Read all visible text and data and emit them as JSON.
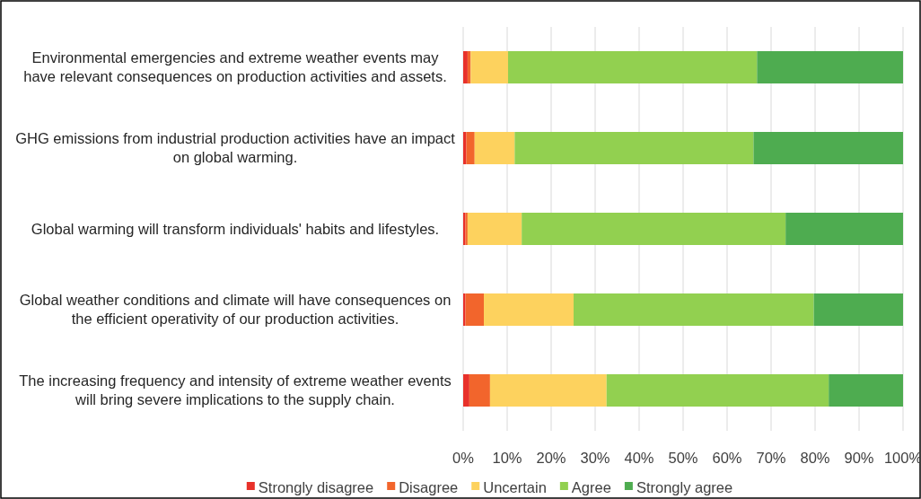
{
  "chart_data": {
    "type": "bar",
    "orientation": "horizontal",
    "stacked": true,
    "categories": [
      "Environmental emergencies and extreme weather events may have relevant consequences on production activities and assets.",
      "GHG emissions from industrial production activities have an impact on global warming.",
      "Global warming will transform individuals' habits and lifestyles.",
      "Global weather conditions and climate will have consequences on the efficient operativity of our production activities.",
      "The increasing frequency and intensity of extreme weather events will bring severe implications to the supply chain."
    ],
    "series": [
      {
        "name": "Strongly disagree",
        "color": "#e8312a",
        "values": [
          1.0,
          0.7,
          0.5,
          0.5,
          1.4
        ]
      },
      {
        "name": "Disagree",
        "color": "#f2652c",
        "values": [
          0.7,
          1.9,
          0.5,
          4.2,
          4.7
        ]
      },
      {
        "name": "Uncertain",
        "color": "#fdd25e",
        "values": [
          8.5,
          9.1,
          12.3,
          20.4,
          26.5
        ]
      },
      {
        "name": "Agree",
        "color": "#92d050",
        "values": [
          56.6,
          54.3,
          60.0,
          54.6,
          50.5
        ]
      },
      {
        "name": "Strongly agree",
        "color": "#4eac50",
        "values": [
          33.2,
          34.0,
          26.7,
          20.3,
          16.9
        ]
      }
    ],
    "xlim": [
      0,
      100
    ],
    "xticks": [
      {
        "value": 0,
        "label": "0%"
      },
      {
        "value": 10,
        "label": "10%"
      },
      {
        "value": 20,
        "label": "20%"
      },
      {
        "value": 30,
        "label": "30%"
      },
      {
        "value": 40,
        "label": "40%"
      },
      {
        "value": 50,
        "label": "50%"
      },
      {
        "value": 60,
        "label": "60%"
      },
      {
        "value": 70,
        "label": "70%"
      },
      {
        "value": 80,
        "label": "80%"
      },
      {
        "value": 90,
        "label": "90%"
      },
      {
        "value": 100,
        "label": "100%"
      }
    ],
    "grid": "x",
    "legend": "bottom"
  }
}
